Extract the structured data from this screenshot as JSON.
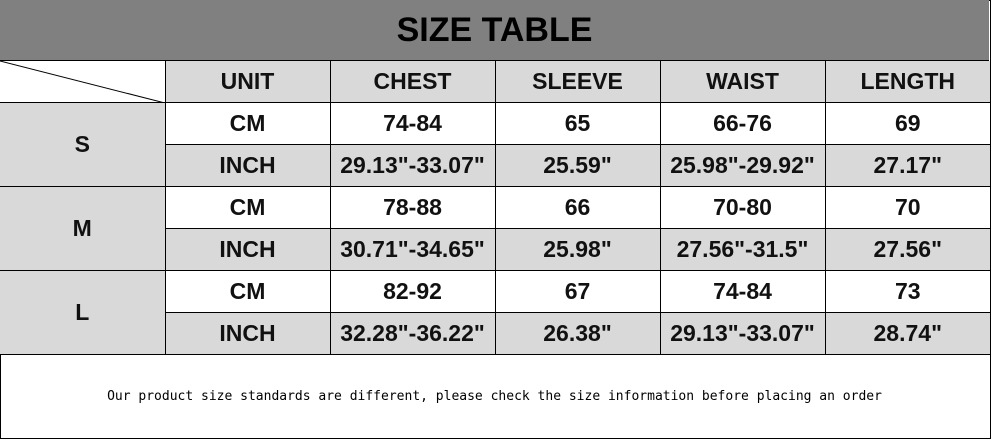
{
  "title": "SIZE TABLE",
  "headers": [
    "UNIT",
    "CHEST",
    "SLEEVE",
    "WAIST",
    "LENGTH"
  ],
  "sizes": [
    {
      "size": "S",
      "rows": [
        [
          "CM",
          "74-84",
          "65",
          "66-76",
          "69"
        ],
        [
          "INCH",
          "29.13\"-33.07\"",
          "25.59\"",
          "25.98\"-29.92\"",
          "27.17\""
        ]
      ]
    },
    {
      "size": "M",
      "rows": [
        [
          "CM",
          "78-88",
          "66",
          "70-80",
          "70"
        ],
        [
          "INCH",
          "30.71\"-34.65\"",
          "25.98\"",
          "27.56\"-31.5\"",
          "27.56\""
        ]
      ]
    },
    {
      "size": "L",
      "rows": [
        [
          "CM",
          "82-92",
          "67",
          "74-84",
          "73"
        ],
        [
          "INCH",
          "32.28\"-36.22\"",
          "26.38\"",
          "29.13\"-33.07\"",
          "28.74\""
        ]
      ]
    }
  ],
  "footer": "Our product size standards are different, please check the size information before placing an order",
  "colors": {
    "title_bg": "#808080",
    "header_bg": "#d9d9d9",
    "alt_row_bg": "#d9d9d9"
  }
}
